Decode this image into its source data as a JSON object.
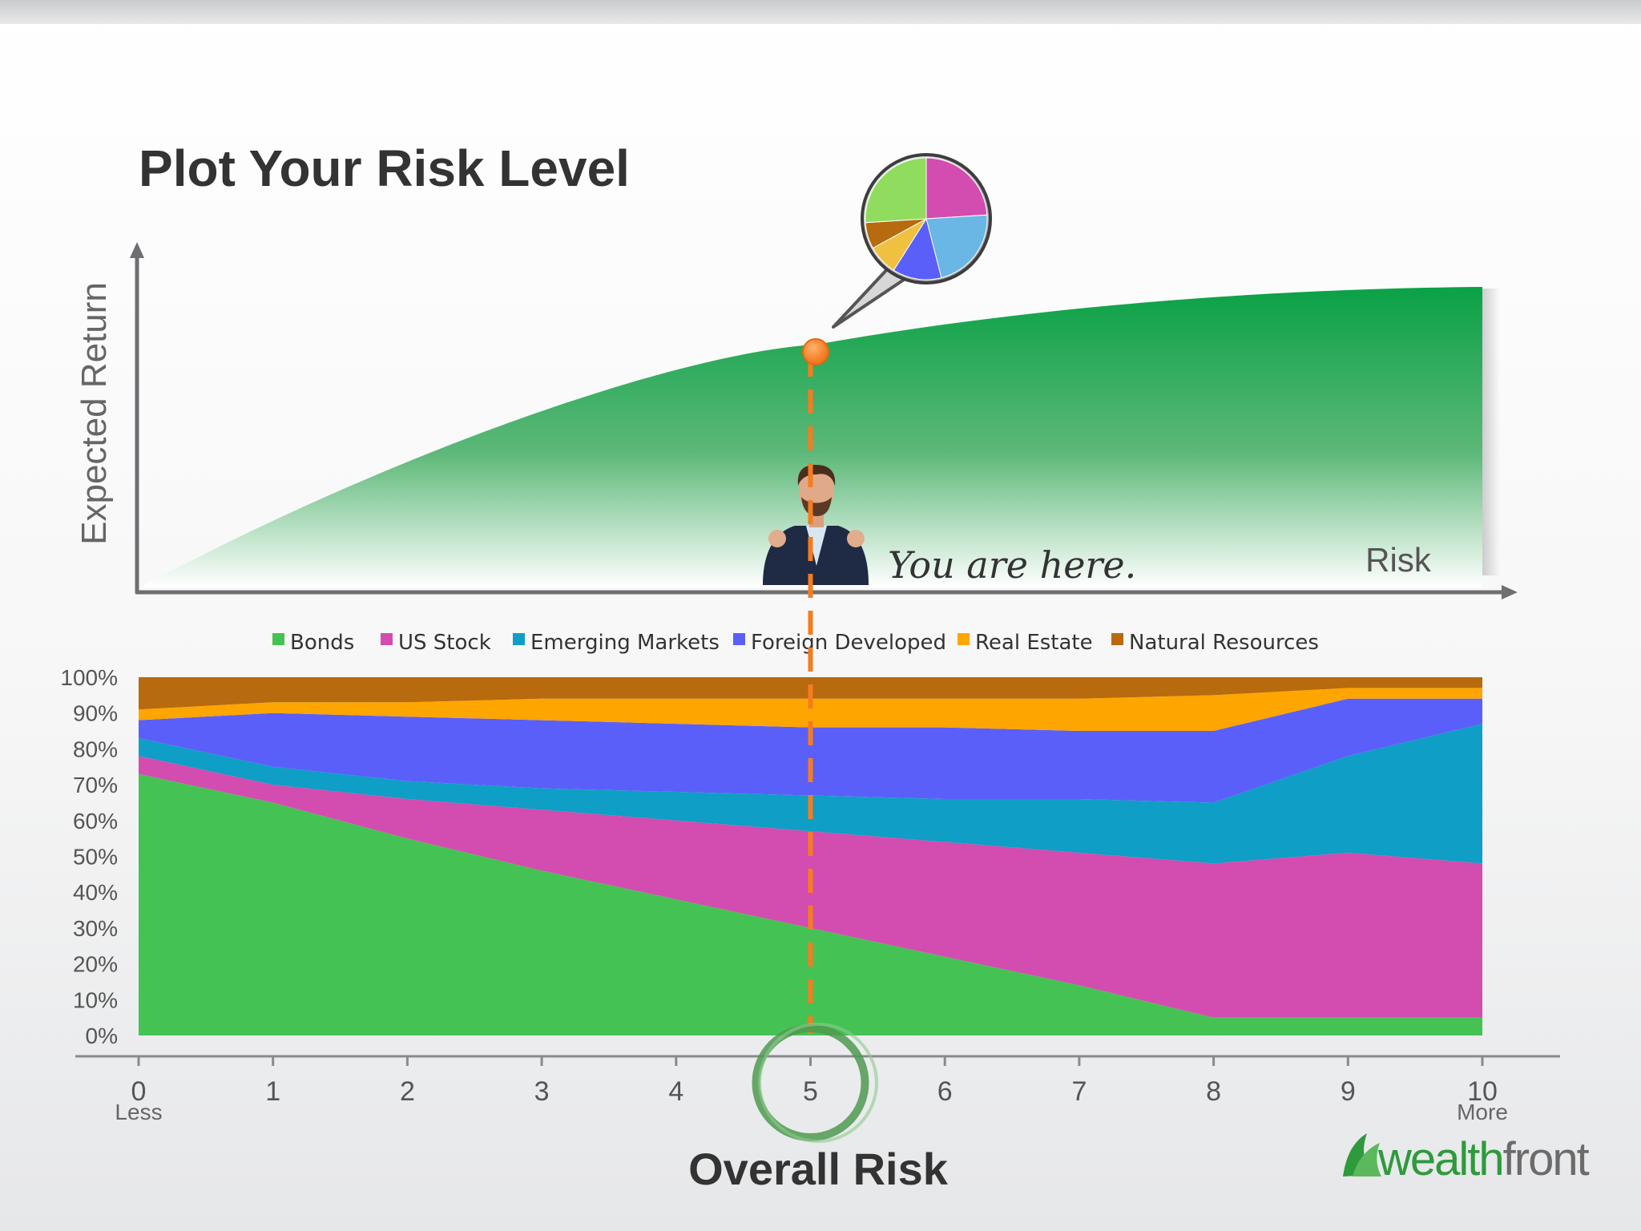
{
  "title": "Plot Your Risk Level",
  "top_chart": {
    "y_axis_label": "Expected Return",
    "x_axis_label": "Risk",
    "annotation": "You are here.",
    "fill_color_top": "#0aa146",
    "fill_color_bottom": "#ffffff",
    "marker_color": "#f57c1f"
  },
  "chart_data": {
    "type": "area",
    "stacked": true,
    "x": [
      0,
      1,
      2,
      3,
      4,
      5,
      6,
      7,
      8,
      9,
      10
    ],
    "x_tick_labels": [
      "0",
      "1",
      "2",
      "3",
      "4",
      "5",
      "6",
      "7",
      "8",
      "9",
      "10"
    ],
    "x_sublabels": {
      "0": "Less",
      "10": "More"
    },
    "xlabel": "Overall Risk",
    "ylim": [
      0,
      100
    ],
    "y_ticks": [
      "0%",
      "10%",
      "20%",
      "30%",
      "40%",
      "50%",
      "60%",
      "70%",
      "80%",
      "90%",
      "100%"
    ],
    "legend_position": "top",
    "highlight_x": 5,
    "series": [
      {
        "name": "Bonds",
        "color": "#45c254",
        "values": [
          73,
          65,
          55,
          46,
          38,
          30,
          22,
          14,
          5,
          5,
          5
        ]
      },
      {
        "name": "US Stock",
        "color": "#d34cb0",
        "values": [
          5,
          5,
          11,
          17,
          22,
          27,
          32,
          37,
          43,
          46,
          43
        ]
      },
      {
        "name": "Emerging Markets",
        "color": "#0f9ec5",
        "values": [
          5,
          5,
          5,
          6,
          8,
          10,
          12,
          15,
          17,
          27,
          39
        ]
      },
      {
        "name": "Foreign Developed",
        "color": "#5b5ffa",
        "values": [
          5,
          15,
          18,
          19,
          19,
          19,
          20,
          19,
          20,
          16,
          7
        ]
      },
      {
        "name": "Real Estate",
        "color": "#ffa500",
        "values": [
          3,
          3,
          4,
          6,
          7,
          8,
          8,
          9,
          10,
          3,
          3
        ]
      },
      {
        "name": "Natural Resources",
        "color": "#b86a0e",
        "values": [
          9,
          7,
          7,
          6,
          6,
          6,
          6,
          6,
          5,
          3,
          3
        ]
      }
    ]
  },
  "pie": {
    "colors": [
      "#d34cb0",
      "#6ab6e4",
      "#5b5ffa",
      "#f0c040",
      "#b86a0e",
      "#8fdc5e"
    ],
    "values": [
      24,
      22,
      13,
      8,
      7,
      26
    ]
  },
  "logo": {
    "text": "wealthfront",
    "color_green": "#2e9a3c",
    "color_gray": "#6b6b6b"
  }
}
